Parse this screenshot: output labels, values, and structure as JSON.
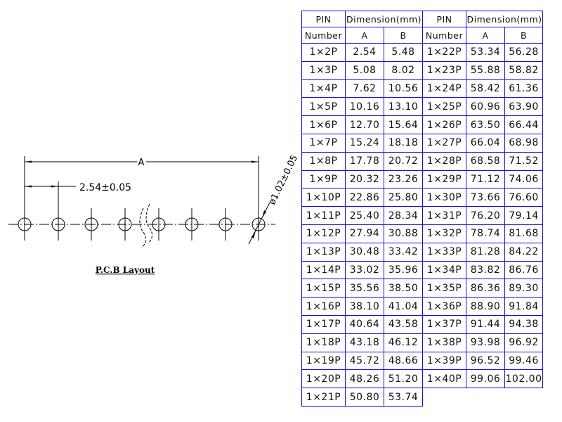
{
  "drawing": {
    "dim_a_label": "A",
    "pitch_label": "2.54±0.05",
    "hole_label": "ø1.02±0.05",
    "caption": "P.C.B  Layout"
  },
  "table": {
    "header": {
      "pin": "PIN",
      "number": "Number",
      "dimension": "Dimension(mm)",
      "a": "A",
      "b": "B"
    },
    "left_rows": [
      [
        "1×2P",
        "2.54",
        "5.48"
      ],
      [
        "1×3P",
        "5.08",
        "8.02"
      ],
      [
        "1×4P",
        "7.62",
        "10.56"
      ],
      [
        "1×5P",
        "10.16",
        "13.10"
      ],
      [
        "1×6P",
        "12.70",
        "15.64"
      ],
      [
        "1×7P",
        "15.24",
        "18.18"
      ],
      [
        "1×8P",
        "17.78",
        "20.72"
      ],
      [
        "1×9P",
        "20.32",
        "23.26"
      ],
      [
        "1×10P",
        "22.86",
        "25.80"
      ],
      [
        "1×11P",
        "25.40",
        "28.34"
      ],
      [
        "1×12P",
        "27.94",
        "30.88"
      ],
      [
        "1×13P",
        "30.48",
        "33.42"
      ],
      [
        "1×14P",
        "33.02",
        "35.96"
      ],
      [
        "1×15P",
        "35.56",
        "38.50"
      ],
      [
        "1×16P",
        "38.10",
        "41.04"
      ],
      [
        "1×17P",
        "40.64",
        "43.58"
      ],
      [
        "1×18P",
        "43.18",
        "46.12"
      ],
      [
        "1×19P",
        "45.72",
        "48.66"
      ],
      [
        "1×20P",
        "48.26",
        "51.20"
      ],
      [
        "1×21P",
        "50.80",
        "53.74"
      ]
    ],
    "right_rows": [
      [
        "1×22P",
        "53.34",
        "56.28"
      ],
      [
        "1×23P",
        "55.88",
        "58.82"
      ],
      [
        "1×24P",
        "58.42",
        "61.36"
      ],
      [
        "1×25P",
        "60.96",
        "63.90"
      ],
      [
        "1×26P",
        "63.50",
        "66.44"
      ],
      [
        "1×27P",
        "66.04",
        "68.98"
      ],
      [
        "1×28P",
        "68.58",
        "71.52"
      ],
      [
        "1×29P",
        "71.12",
        "74.06"
      ],
      [
        "1×30P",
        "73.66",
        "76.60"
      ],
      [
        "1×31P",
        "76.20",
        "79.14"
      ],
      [
        "1×32P",
        "78.74",
        "81.68"
      ],
      [
        "1×33P",
        "81.28",
        "84.22"
      ],
      [
        "1×34P",
        "83.82",
        "86.76"
      ],
      [
        "1×35P",
        "86.36",
        "89.30"
      ],
      [
        "1×36P",
        "88.90",
        "91.84"
      ],
      [
        "1×37P",
        "91.44",
        "94.38"
      ],
      [
        "1×38P",
        "93.98",
        "96.92"
      ],
      [
        "1×39P",
        "96.52",
        "99.46"
      ],
      [
        "1×40P",
        "99.06",
        "102.00"
      ]
    ]
  },
  "colors": {
    "table_border": "#1010e0",
    "line": "#000000"
  }
}
